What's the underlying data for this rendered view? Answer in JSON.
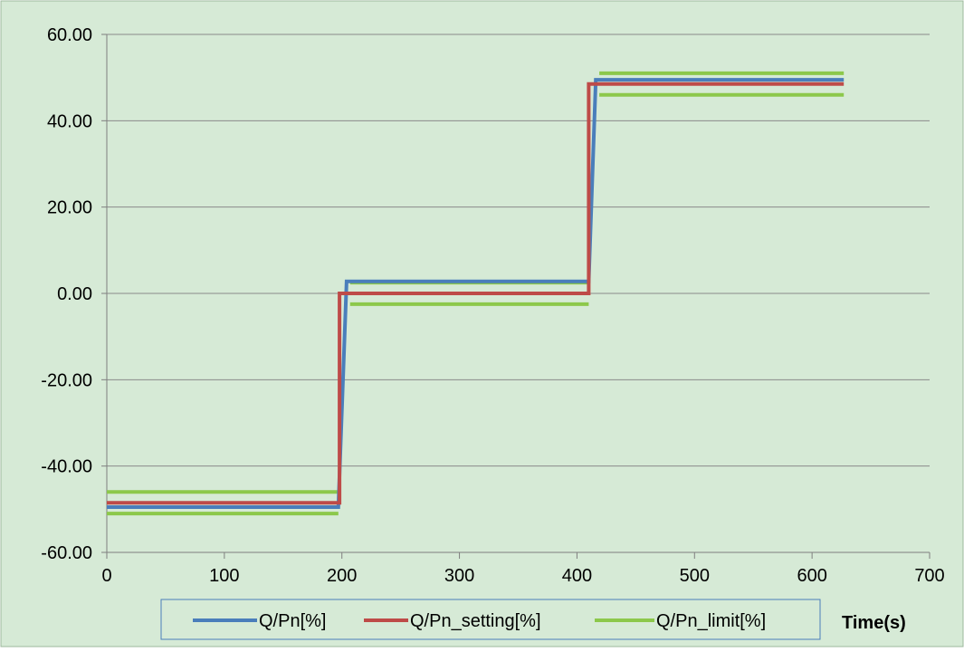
{
  "chart_data": {
    "type": "line",
    "title": "",
    "xlabel": "Time(s)",
    "ylabel": "",
    "xlim": [
      0,
      700
    ],
    "ylim": [
      -60,
      60
    ],
    "x_ticks": [
      0,
      100,
      200,
      300,
      400,
      500,
      600,
      700
    ],
    "x_tick_labels": [
      "0",
      "100",
      "200",
      "300",
      "400",
      "500",
      "600",
      "700"
    ],
    "y_ticks": [
      -60,
      -40,
      -20,
      0,
      20,
      40,
      60
    ],
    "y_tick_labels": [
      "-60.00",
      "-40.00",
      "-20.00",
      "0.00",
      "20.00",
      "40.00",
      "60.00"
    ],
    "grid": "horizontal",
    "legend_position": "bottom",
    "background_color": "#d6ead6",
    "series": [
      {
        "name": "Q/Pn[%]",
        "color": "#4a7ebb",
        "segments": [
          [
            [
              0,
              -49.5
            ],
            [
              197,
              -49.5
            ],
            [
              204,
              2.8
            ],
            [
              410,
              2.8
            ],
            [
              416,
              49.5
            ],
            [
              627,
              49.5
            ]
          ]
        ]
      },
      {
        "name": "Q/Pn_setting[%]",
        "color": "#be4b48",
        "segments": [
          [
            [
              0,
              -48.5
            ],
            [
              198,
              -48.5
            ],
            [
              198,
              0
            ],
            [
              410,
              0
            ],
            [
              410,
              48.5
            ],
            [
              627,
              48.5
            ]
          ]
        ]
      },
      {
        "name": "Q/Pn_limit[%]",
        "color": "#8cc84b",
        "segments": [
          [
            [
              0,
              -46
            ],
            [
              197,
              -46
            ]
          ],
          [
            [
              0,
              -51
            ],
            [
              197,
              -51
            ]
          ],
          [
            [
              207,
              2.5
            ],
            [
              410,
              2.5
            ]
          ],
          [
            [
              207,
              -2.5
            ],
            [
              410,
              -2.5
            ]
          ],
          [
            [
              419,
              51
            ],
            [
              627,
              51
            ]
          ],
          [
            [
              419,
              46
            ],
            [
              627,
              46
            ]
          ]
        ]
      }
    ]
  }
}
